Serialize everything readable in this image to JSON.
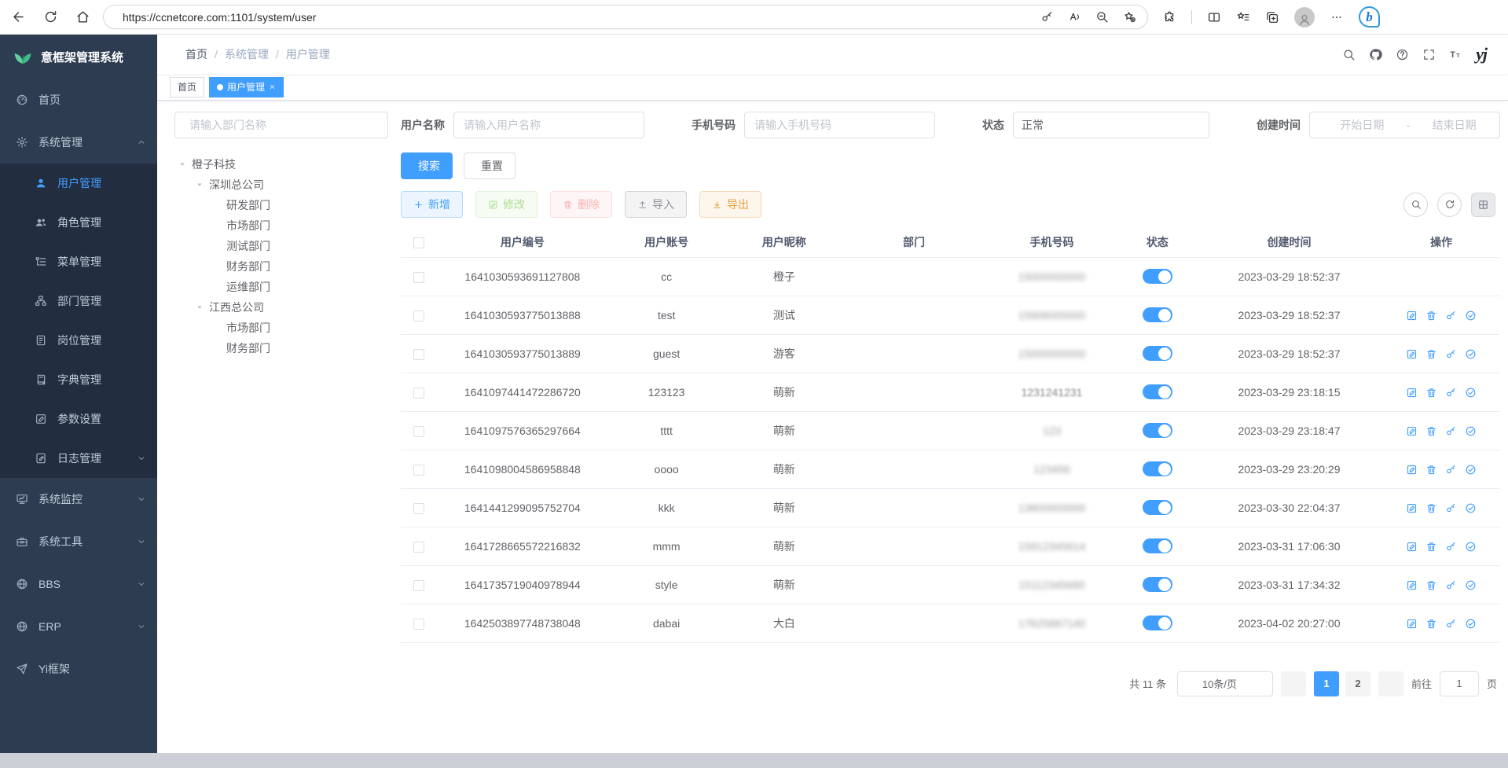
{
  "colors": {
    "accent": "#409eff",
    "sidebar_bg": "#2e3c51",
    "submenu_bg": "#222d40",
    "logo_green": "#3fb983"
  },
  "browser": {
    "url": "https://ccnetcore.com:1101/system/user",
    "left_icons": [
      "back",
      "refresh",
      "home"
    ],
    "inbar_icons": [
      "key",
      "read-aloud",
      "zoom-out",
      "favorite-add"
    ],
    "right_icons": [
      "extensions",
      "divider",
      "split-screen",
      "favorites-bar",
      "collections",
      "profile",
      "more",
      "copilot"
    ],
    "copilot_glyph": "b"
  },
  "sidebar": {
    "title": "意框架管理系统",
    "menu": [
      {
        "label": "首页",
        "icon": "dashboard"
      },
      {
        "label": "系统管理",
        "icon": "gear",
        "arrow": "up"
      },
      {
        "label": "用户管理",
        "icon": "user",
        "sub": true,
        "active": true
      },
      {
        "label": "角色管理",
        "icon": "people",
        "sub": true
      },
      {
        "label": "菜单管理",
        "icon": "menu-tree",
        "sub": true
      },
      {
        "label": "部门管理",
        "icon": "org",
        "sub": true
      },
      {
        "label": "岗位管理",
        "icon": "badge",
        "sub": true
      },
      {
        "label": "字典管理",
        "icon": "dict",
        "sub": true
      },
      {
        "label": "参数设置",
        "icon": "edit-square",
        "sub": true
      },
      {
        "label": "日志管理",
        "icon": "log",
        "sub": true,
        "arrow": "down"
      },
      {
        "label": "系统监控",
        "icon": "monitor",
        "arrow": "down"
      },
      {
        "label": "系统工具",
        "icon": "toolbox",
        "arrow": "down"
      },
      {
        "label": "BBS",
        "icon": "globe",
        "arrow": "down"
      },
      {
        "label": "ERP",
        "icon": "globe",
        "arrow": "down"
      },
      {
        "label": "Yi框架",
        "icon": "send"
      }
    ]
  },
  "navbar": {
    "breadcrumb": [
      "首页",
      "系统管理",
      "用户管理"
    ],
    "right_icons": [
      "search",
      "github",
      "question",
      "fullscreen",
      "font-size"
    ],
    "avatar_text": "yj"
  },
  "tags": [
    {
      "label": "首页",
      "active": false,
      "closable": false
    },
    {
      "label": "用户管理",
      "active": true,
      "closable": true
    }
  ],
  "tree_panel": {
    "search_placeholder": "请输入部门名称",
    "nodes": [
      {
        "label": "橙子科技",
        "level": 0,
        "expandable": true
      },
      {
        "label": "深圳总公司",
        "level": 1,
        "expandable": true
      },
      {
        "label": "研发部门",
        "level": 2
      },
      {
        "label": "市场部门",
        "level": 2
      },
      {
        "label": "测试部门",
        "level": 2
      },
      {
        "label": "财务部门",
        "level": 2
      },
      {
        "label": "运维部门",
        "level": 2
      },
      {
        "label": "江西总公司",
        "level": 1,
        "expandable": true
      },
      {
        "label": "市场部门",
        "level": 2
      },
      {
        "label": "财务部门",
        "level": 2
      }
    ]
  },
  "filters": {
    "username": {
      "label": "用户名称",
      "placeholder": "请输入用户名称"
    },
    "phone": {
      "label": "手机号码",
      "placeholder": "请输入手机号码"
    },
    "status": {
      "label": "状态",
      "value": "正常"
    },
    "created": {
      "label": "创建时间",
      "start_placeholder": "开始日期",
      "separator": "-",
      "end_placeholder": "结束日期"
    }
  },
  "search_buttons": {
    "search": "搜索",
    "reset": "重置"
  },
  "toolbar": [
    {
      "label": "新增",
      "type": "primary",
      "icon": "plus",
      "disabled": false
    },
    {
      "label": "修改",
      "type": "success",
      "icon": "edit-square",
      "disabled": true
    },
    {
      "label": "删除",
      "type": "danger",
      "icon": "trash",
      "disabled": true
    },
    {
      "label": "导入",
      "type": "info",
      "icon": "upload",
      "disabled": false
    },
    {
      "label": "导出",
      "type": "warning",
      "icon": "download",
      "disabled": false
    }
  ],
  "toolbar_extra": [
    "search",
    "refresh",
    "grid"
  ],
  "table": {
    "columns": [
      "用户编号",
      "用户账号",
      "用户昵称",
      "部门",
      "手机号码",
      "状态",
      "创建时间",
      "操作"
    ],
    "action_icons": [
      "edit-square",
      "trash",
      "key",
      "check-circle"
    ],
    "rows": [
      {
        "id": "1641030593691127808",
        "account": "cc",
        "nickname": "橙子",
        "dept": "",
        "phone": "15000000000",
        "phone_blur": "heavy",
        "status": true,
        "created": "2023-03-29 18:52:37",
        "actions": false
      },
      {
        "id": "1641030593775013888",
        "account": "test",
        "nickname": "测试",
        "dept": "",
        "phone": "15906000000",
        "phone_blur": "heavy",
        "status": true,
        "created": "2023-03-29 18:52:37",
        "actions": true
      },
      {
        "id": "1641030593775013889",
        "account": "guest",
        "nickname": "游客",
        "dept": "",
        "phone": "15000000000",
        "phone_blur": "heavy",
        "status": true,
        "created": "2023-03-29 18:52:37",
        "actions": true
      },
      {
        "id": "1641097441472286720",
        "account": "123123",
        "nickname": "萌新",
        "dept": "",
        "phone": "1231241231",
        "phone_blur": "light",
        "status": true,
        "created": "2023-03-29 23:18:15",
        "actions": true
      },
      {
        "id": "1641097576365297664",
        "account": "tttt",
        "nickname": "萌新",
        "dept": "",
        "phone": "123",
        "phone_blur": "heavy",
        "status": true,
        "created": "2023-03-29 23:18:47",
        "actions": true
      },
      {
        "id": "1641098004586958848",
        "account": "oooo",
        "nickname": "萌新",
        "dept": "",
        "phone": "123456",
        "phone_blur": "heavy",
        "status": true,
        "created": "2023-03-29 23:20:29",
        "actions": true
      },
      {
        "id": "1641441299095752704",
        "account": "kkk",
        "nickname": "萌新",
        "dept": "",
        "phone": "13800000000",
        "phone_blur": "heavy",
        "status": true,
        "created": "2023-03-30 22:04:37",
        "actions": true
      },
      {
        "id": "1641728665572216832",
        "account": "mmm",
        "nickname": "萌新",
        "dept": "",
        "phone": "15912345614",
        "phone_blur": "heavy",
        "status": true,
        "created": "2023-03-31 17:06:30",
        "actions": true
      },
      {
        "id": "1641735719040978944",
        "account": "style",
        "nickname": "萌新",
        "dept": "",
        "phone": "15112345680",
        "phone_blur": "heavy",
        "status": true,
        "created": "2023-03-31 17:34:32",
        "actions": true
      },
      {
        "id": "1642503897748738048",
        "account": "dabai",
        "nickname": "大白",
        "dept": "",
        "phone": "17625887140",
        "phone_blur": "heavy",
        "status": true,
        "created": "2023-04-02 20:27:00",
        "actions": true
      }
    ]
  },
  "pagination": {
    "total": "共 11 条",
    "page_size": "10条/页",
    "pages": [
      "1",
      "2"
    ],
    "active_page": "1",
    "goto_label": "前往",
    "goto_value": "1",
    "unit": "页"
  }
}
